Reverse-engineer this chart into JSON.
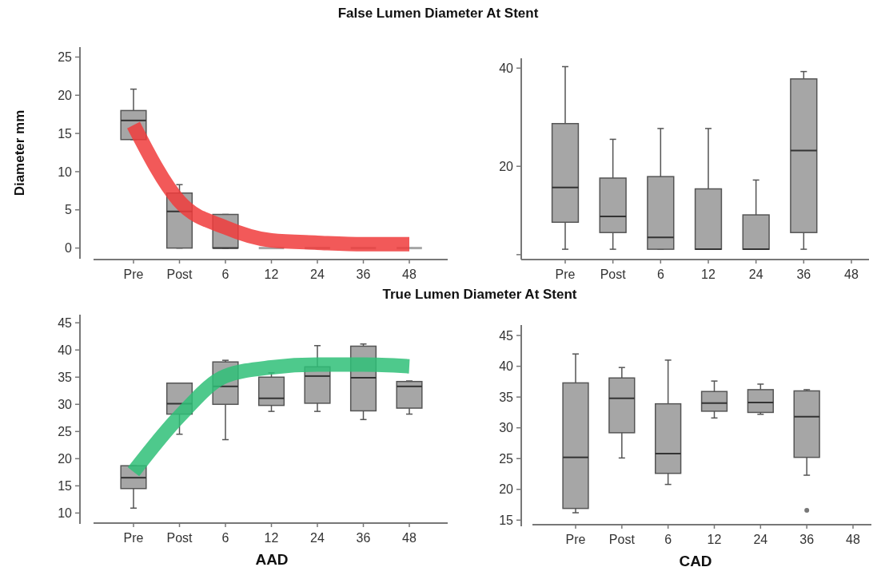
{
  "chart_data": [
    {
      "type": "box",
      "title": "False Lumen Diameter At Stent",
      "ylabel": "Diameter mm",
      "categories": [
        "Pre",
        "Post",
        "6",
        "12",
        "24",
        "36",
        "48"
      ],
      "color": "#a6a6a6",
      "ylim": [
        -1.4,
        26.3
      ],
      "yticks": [
        0,
        5,
        10,
        15,
        20,
        25
      ],
      "boxes": [
        {
          "low": 14.2,
          "q1": 14.2,
          "median": 16.7,
          "q3": 18,
          "high": 20.8
        },
        {
          "low": 0,
          "q1": 0,
          "median": 4.8,
          "q3": 7.2,
          "high": 8.3
        },
        {
          "low": 0,
          "q1": 0,
          "median": 0,
          "q3": 4.4,
          "high": 4.4
        },
        {
          "low": 0,
          "q1": 0,
          "median": 0,
          "q3": 0,
          "high": 0
        },
        {
          "low": 0,
          "q1": 0,
          "median": 0,
          "q3": 0,
          "high": 0
        },
        {
          "low": 0,
          "q1": 0,
          "median": 0,
          "q3": 0,
          "high": 0
        },
        {
          "low": 0,
          "q1": 0,
          "median": 0,
          "q3": 0,
          "high": 0
        }
      ],
      "series": [
        {
          "type": "line",
          "color": "#f03c3c",
          "values": [
            16.1,
            6.1,
            2.7,
            1.0,
            0.7,
            0.5,
            0.5
          ]
        }
      ]
    },
    {
      "type": "box",
      "categories": [
        "Pre",
        "Post",
        "6",
        "12",
        "24",
        "36",
        "48"
      ],
      "color": "#a6a6a6",
      "ylim": [
        1,
        42
      ],
      "yticks": [
        {
          "value": 2,
          "label": null
        },
        20,
        40
      ],
      "boxes": [
        {
          "low": 3.1,
          "q1": 8.6,
          "median": 15.7,
          "q3": 28.7,
          "high": 40.3
        },
        {
          "low": 3.1,
          "q1": 6.5,
          "median": 9.8,
          "q3": 17.6,
          "high": 25.5
        },
        {
          "low": 3.1,
          "q1": 3.1,
          "median": 5.5,
          "q3": 17.9,
          "high": 27.7
        },
        {
          "low": 3.1,
          "q1": 3.1,
          "median": 3.1,
          "q3": 15.4,
          "high": 27.7
        },
        {
          "low": 3.1,
          "q1": 3.1,
          "median": 3.1,
          "q3": 10.1,
          "high": 17.2
        },
        {
          "low": 3.1,
          "q1": 6.5,
          "median": 23.2,
          "q3": 37.8,
          "high": 39.3
        },
        null
      ]
    },
    {
      "type": "box",
      "title": "True Lumen Diameter At Stent",
      "xlabel": "AAD",
      "categories": [
        "Pre",
        "Post",
        "6",
        "12",
        "24",
        "36",
        "48"
      ],
      "color": "#a6a6a6",
      "ylim": [
        8,
        46.5
      ],
      "yticks": [
        10,
        15,
        20,
        25,
        30,
        35,
        40,
        45
      ],
      "boxes": [
        {
          "low": 10.9,
          "q1": 14.5,
          "median": 16.5,
          "q3": 18.7,
          "high": 18.7
        },
        {
          "low": 24.5,
          "q1": 28.2,
          "median": 30.1,
          "q3": 33.9,
          "high": 33.9
        },
        {
          "low": 23.5,
          "q1": 30.0,
          "median": 33.3,
          "q3": 37.8,
          "high": 38.1
        },
        {
          "low": 28.7,
          "q1": 29.8,
          "median": 31.1,
          "q3": 35.0,
          "high": 35.8
        },
        {
          "low": 28.7,
          "q1": 30.2,
          "median": 35.2,
          "q3": 36.9,
          "high": 40.8
        },
        {
          "low": 27.2,
          "q1": 28.8,
          "median": 34.9,
          "q3": 40.7,
          "high": 41.1
        },
        {
          "low": 28.2,
          "q1": 29.3,
          "median": 33.3,
          "q3": 34.2,
          "high": 34.3
        }
      ],
      "series": [
        {
          "type": "line",
          "color": "#2fc078",
          "values": [
            17.6,
            27.8,
            35.2,
            36.8,
            37.3,
            37.3,
            37.0
          ]
        }
      ]
    },
    {
      "type": "box",
      "xlabel": "CAD",
      "categories": [
        "Pre",
        "Post",
        "6",
        "12",
        "24",
        "36",
        "48"
      ],
      "color": "#a6a6a6",
      "ylim": [
        14,
        46.7
      ],
      "yticks": [
        15,
        20,
        25,
        30,
        35,
        40,
        45
      ],
      "boxes": [
        {
          "low": 16.2,
          "q1": 16.9,
          "median": 25.2,
          "q3": 37.3,
          "high": 42.0
        },
        {
          "low": 25.1,
          "q1": 29.2,
          "median": 34.8,
          "q3": 38.1,
          "high": 39.8
        },
        {
          "low": 20.8,
          "q1": 22.6,
          "median": 25.8,
          "q3": 33.9,
          "high": 41.0
        },
        {
          "low": 31.6,
          "q1": 32.7,
          "median": 34.0,
          "q3": 35.9,
          "high": 37.6
        },
        {
          "low": 32.2,
          "q1": 32.5,
          "median": 34.1,
          "q3": 36.2,
          "high": 37.1
        },
        {
          "low": 22.3,
          "q1": 25.2,
          "median": 31.8,
          "q3": 36.0,
          "high": 36.2,
          "outliers": [
            16.6
          ]
        },
        null
      ]
    }
  ]
}
